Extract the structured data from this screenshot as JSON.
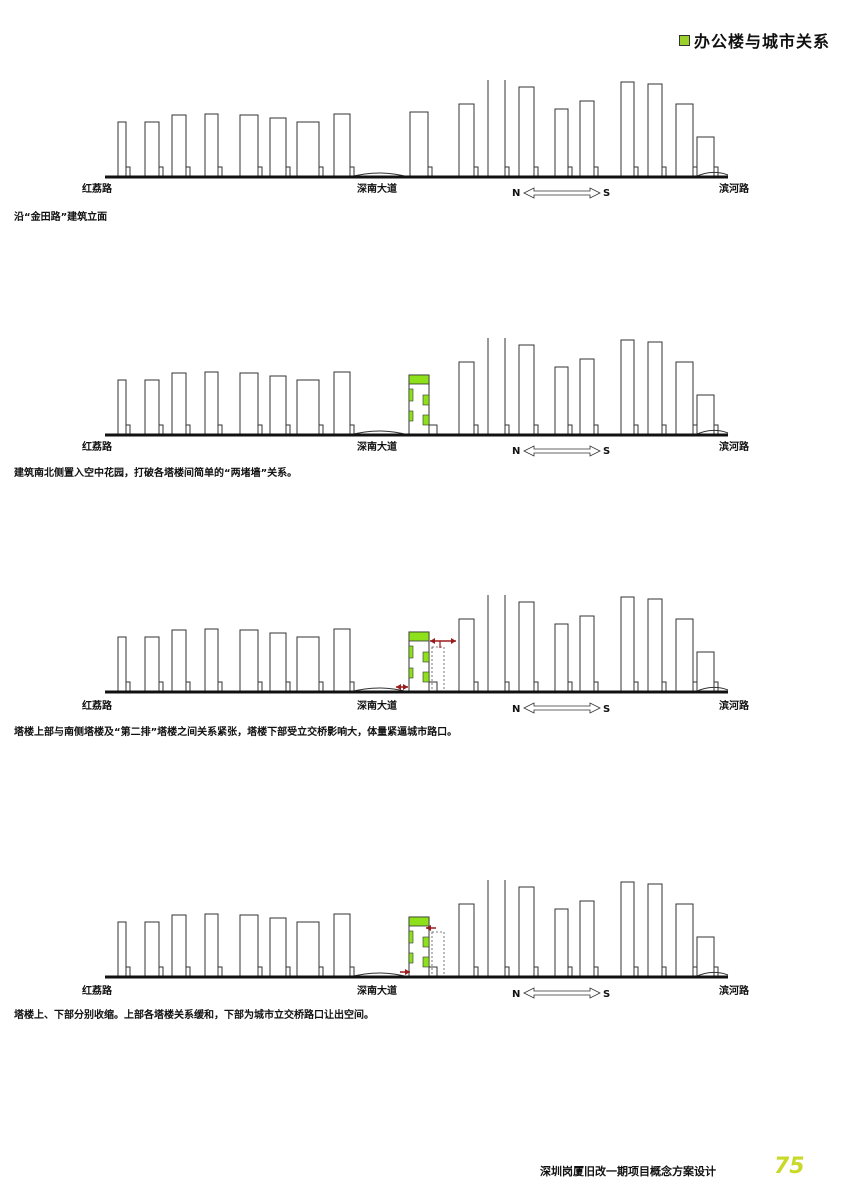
{
  "header": {
    "title": "办公楼与城市关系",
    "marker_color": "#9bd12a"
  },
  "roads": {
    "left": "红荔路",
    "middle": "深南大道",
    "right": "滨河路"
  },
  "compass": {
    "north": "N",
    "south": "S"
  },
  "panels": [
    {
      "caption": "沿“金田路”建筑立面"
    },
    {
      "caption": "建筑南北侧置入空中花园，打破各塔楼间简单的“两堵墙”关系。"
    },
    {
      "caption": "塔楼上部与南侧塔楼及“第二排”塔楼之间关系紧张，塔楼下部受立交桥影响大，体量紧逼城市路口。"
    },
    {
      "caption": "塔楼上、下部分别收缩。上部各塔楼关系缓和，下部为城市立交桥路口让出空间。"
    }
  ],
  "footer": {
    "project": "深圳岗厦旧改一期项目概念方案设计",
    "page_number": "75"
  },
  "colors": {
    "garden": "#8ee01a",
    "arrow": "#9b1c1c",
    "ground": "#111111"
  }
}
